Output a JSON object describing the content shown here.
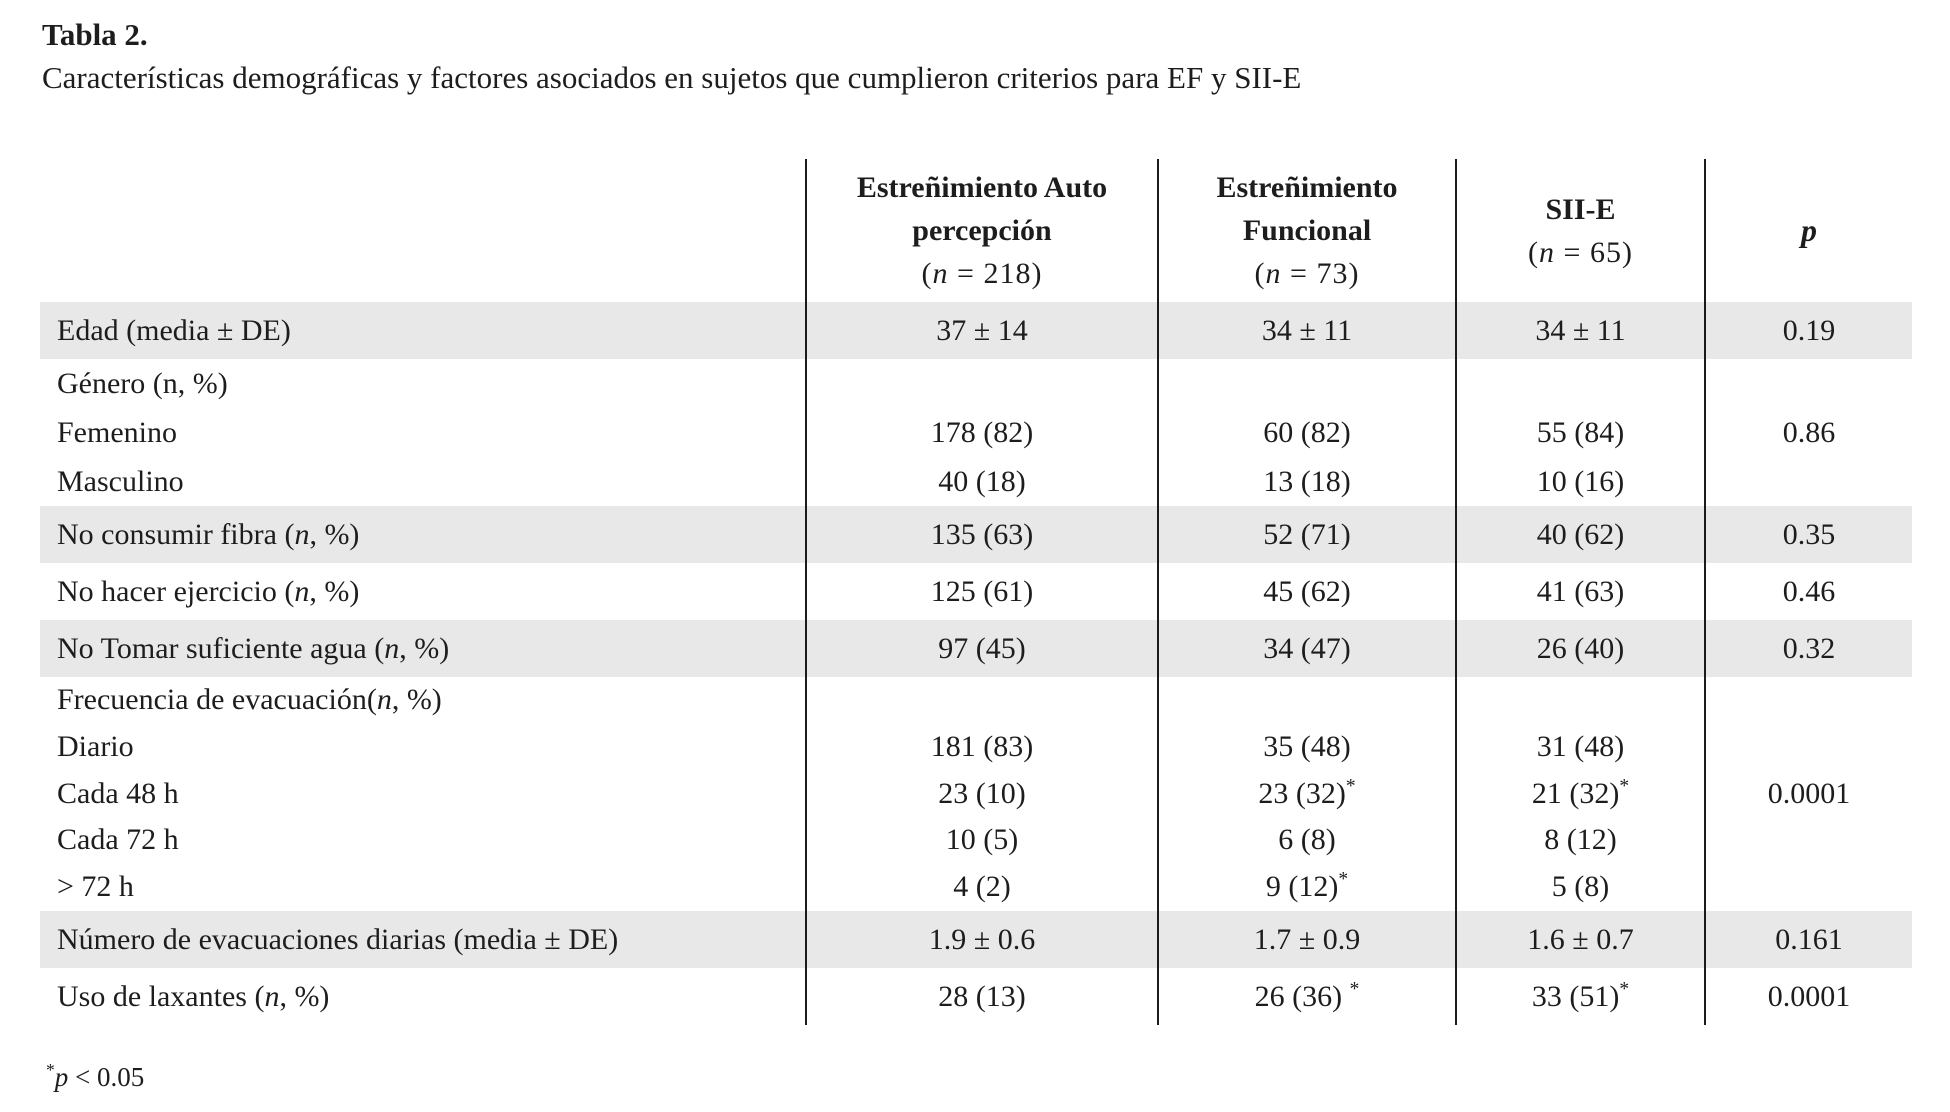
{
  "title": "Tabla 2.",
  "subtitle": "Características demográficas y factores asociados en sujetos que cumplieron criterios para EF y SII-E",
  "table": {
    "header": {
      "columns": [
        {
          "lines": [
            "Estreñimiento Auto",
            "percepción",
            "(*n* = 218)"
          ]
        },
        {
          "lines": [
            "Estreñimiento",
            "Funcional",
            "(*n* = 73)"
          ]
        },
        {
          "lines": [
            "SII-E",
            "(*n* = 65)"
          ]
        },
        {
          "lines": [
            "*p*"
          ]
        }
      ]
    },
    "rows": [
      {
        "shaded": true,
        "label_lines": [
          "Edad (media ± DE)"
        ],
        "cells": [
          [
            "37 ± 14"
          ],
          [
            "34 ± 11"
          ],
          [
            "34 ± 11"
          ]
        ],
        "p": "0.19"
      },
      {
        "shaded": false,
        "label_lines": [
          "Género (n, %)",
          "Femenino",
          "Masculino"
        ],
        "cells": [
          [
            "",
            "178 (82)",
            "40 (18)"
          ],
          [
            "",
            "60 (82)",
            "13 (18)"
          ],
          [
            "",
            "55 (84)",
            "10 (16)"
          ]
        ],
        "p": "0.86"
      },
      {
        "shaded": true,
        "label_lines": [
          "No consumir fibra (*n*, %)"
        ],
        "cells": [
          [
            "135 (63)"
          ],
          [
            "52 (71)"
          ],
          [
            "40 (62)"
          ]
        ],
        "p": "0.35"
      },
      {
        "shaded": false,
        "label_lines": [
          "No hacer ejercicio (*n*, %)"
        ],
        "cells": [
          [
            "125 (61)"
          ],
          [
            "45 (62)"
          ],
          [
            "41 (63)"
          ]
        ],
        "p": "0.46"
      },
      {
        "shaded": true,
        "label_lines": [
          "No Tomar suficiente agua (*n*, %)"
        ],
        "cells": [
          [
            "97 (45)"
          ],
          [
            "34 (47)"
          ],
          [
            "26 (40)"
          ]
        ],
        "p": "0.32"
      },
      {
        "shaded": false,
        "label_lines": [
          "Frecuencia de evacuación(*n*, %)",
          "Diario",
          "Cada 48 h",
          "Cada 72 h",
          "> 72 h"
        ],
        "cells": [
          [
            "",
            "181 (83)",
            "23 (10)",
            "10 (5)",
            "4 (2)"
          ],
          [
            "",
            "35 (48)",
            "23 (32)*",
            "6 (8)",
            "9 (12)*"
          ],
          [
            "",
            "31 (48)",
            "21 (32)*",
            "8 (12)",
            "5 (8)"
          ]
        ],
        "p": "0.0001"
      },
      {
        "shaded": true,
        "label_lines": [
          "Número de evacuaciones diarias (media ± DE)"
        ],
        "cells": [
          [
            "1.9 ± 0.6"
          ],
          [
            "1.7 ± 0.9"
          ],
          [
            "1.6 ± 0.7"
          ]
        ],
        "p": "0.161"
      },
      {
        "shaded": false,
        "label_lines": [
          "Uso de laxantes (*n*, %)"
        ],
        "cells": [
          [
            "28 (13)"
          ],
          [
            "26 (36) *"
          ],
          [
            "33 (51)*"
          ]
        ],
        "p": "0.0001"
      }
    ]
  },
  "footnote": {
    "star": "*",
    "text": "*p* < 0.05"
  }
}
